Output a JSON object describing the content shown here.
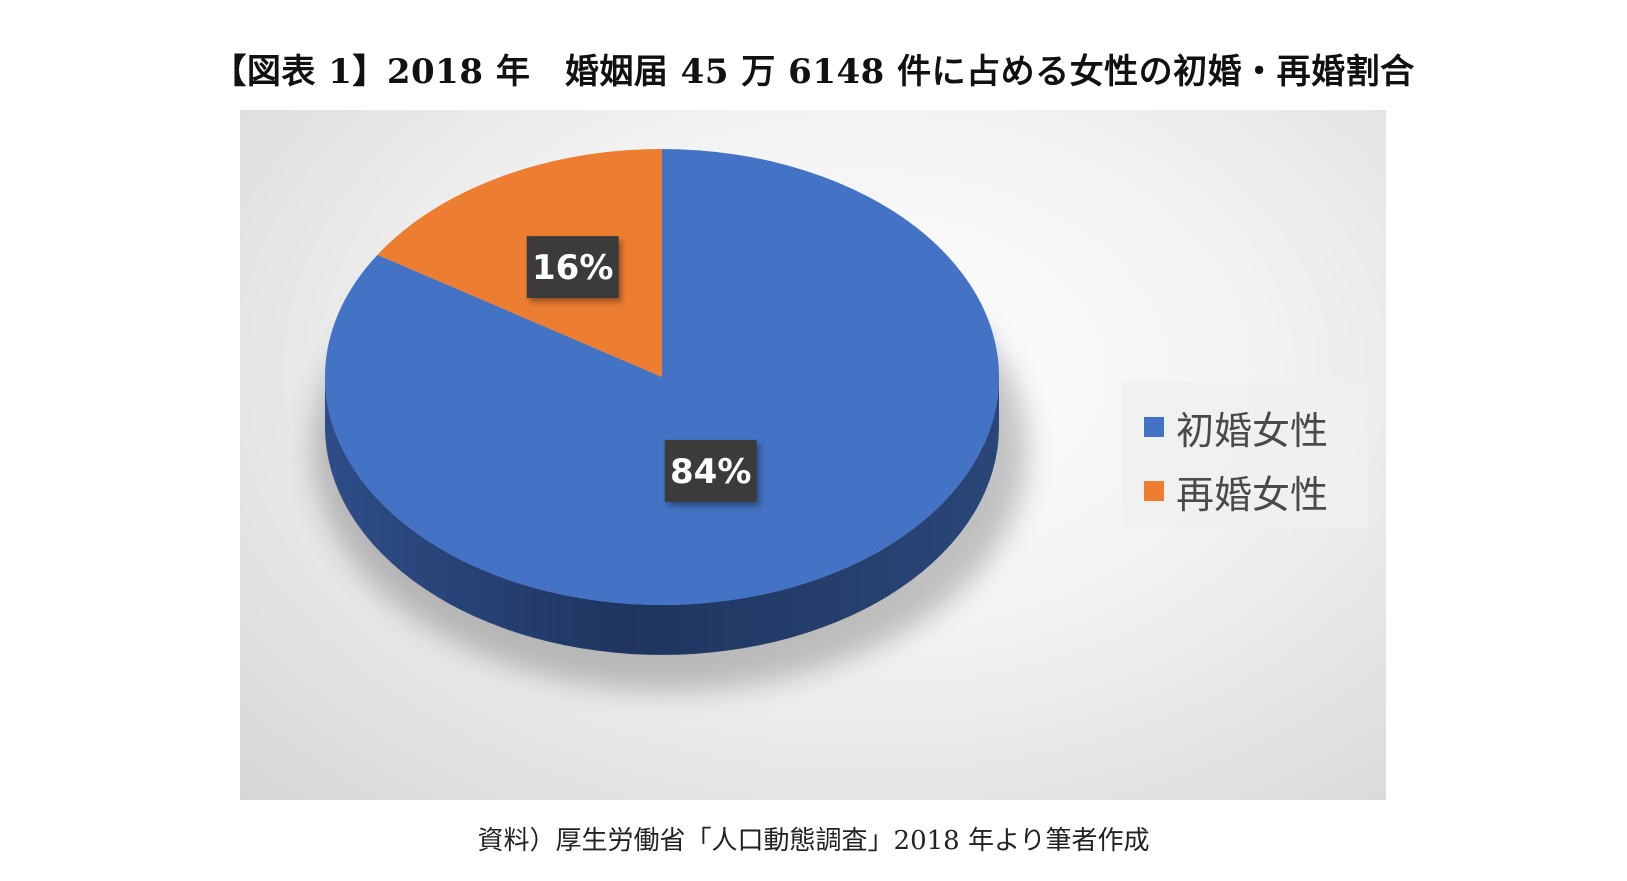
{
  "title": "【図表 1】2018 年　婚姻届 45 万 6148 件に占める女性の初婚・再婚割合",
  "source": "資料）厚生労働省「人口動態調査」2018 年より筆者作成",
  "chart_data": {
    "type": "pie",
    "style": "3d",
    "categories": [
      "初婚女性",
      "再婚女性"
    ],
    "values": [
      84,
      16
    ],
    "data_labels": [
      "84%",
      "16%"
    ],
    "colors": [
      "#4472C4",
      "#ED7D31"
    ],
    "legend_position": "right"
  }
}
